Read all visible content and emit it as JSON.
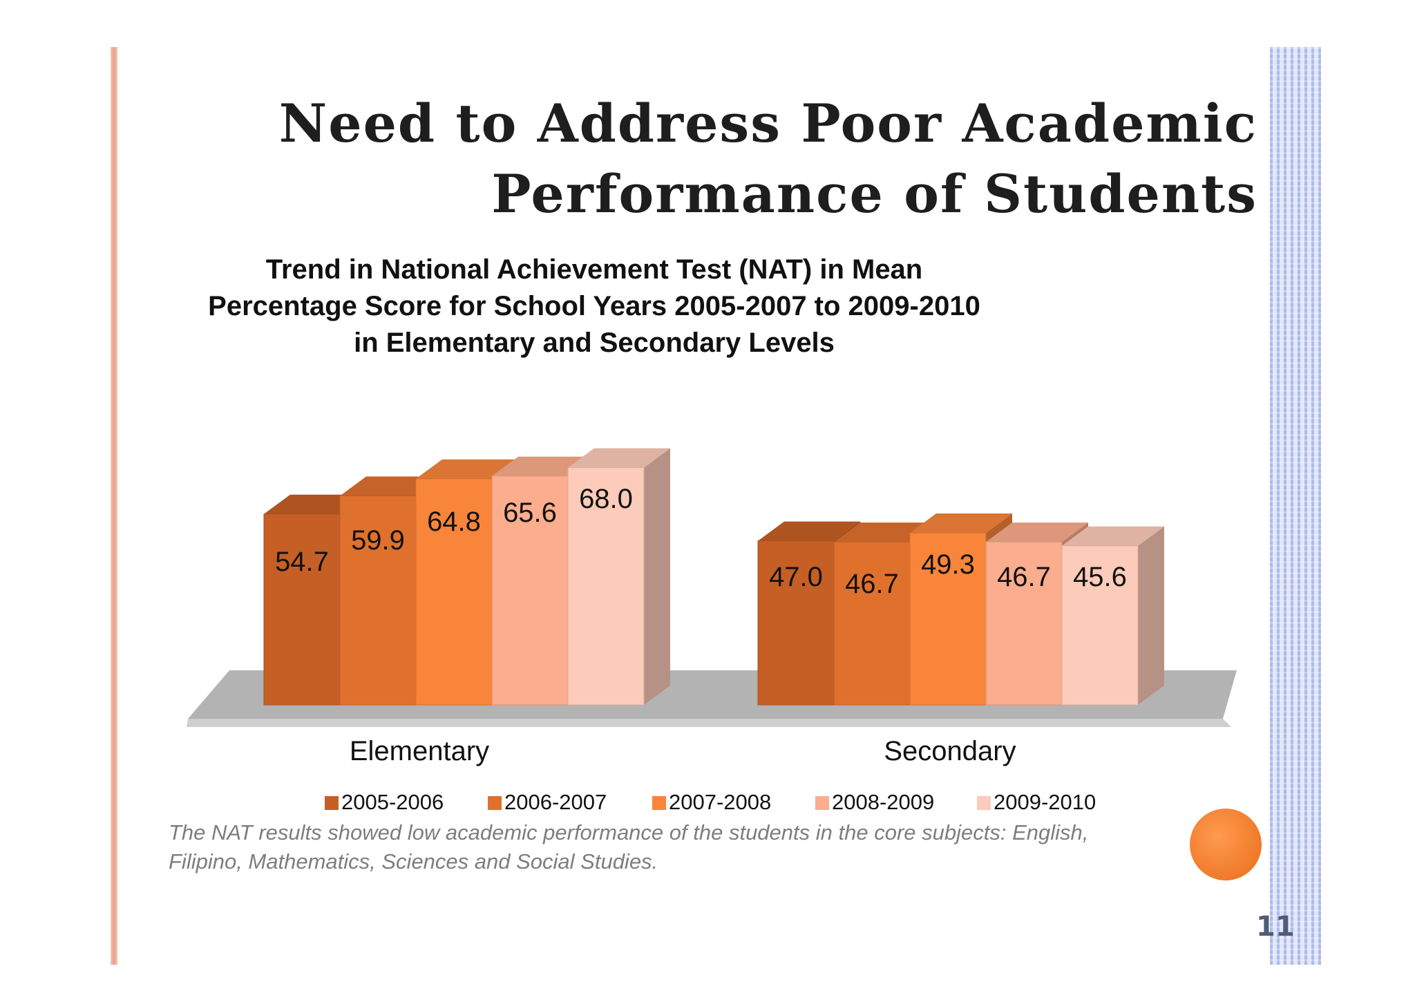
{
  "slide": {
    "title_lines": [
      "Need to Address Poor Academic",
      "Performance of Students"
    ],
    "note_lines": [
      "The  NAT results  showed  low academic performance of the students in the  core subjects: English,",
      "Filipino, Mathematics, Sciences and Social Studies."
    ],
    "page_number": "11"
  },
  "chart_data": {
    "type": "bar",
    "title_lines": [
      "Trend in National Achievement Test (NAT) in Mean",
      "Percentage Score for School Years 2005-2007 to 2009-2010",
      "in Elementary and Secondary Levels"
    ],
    "categories": [
      "Elementary",
      "Secondary"
    ],
    "series": [
      {
        "name": "2005-2006",
        "values": [
          54.7,
          47.0
        ],
        "labels": [
          "54.7",
          "47.0"
        ],
        "color": "#c65f25"
      },
      {
        "name": "2006-2007",
        "values": [
          59.9,
          46.7
        ],
        "labels": [
          "59.9",
          "46.7"
        ],
        "color": "#e0712d"
      },
      {
        "name": "2007-2008",
        "values": [
          64.8,
          49.3
        ],
        "labels": [
          "64.8",
          "49.3"
        ],
        "color": "#f8853a"
      },
      {
        "name": "2008-2009",
        "values": [
          65.6,
          46.7
        ],
        "labels": [
          "65.6",
          "46.7"
        ],
        "color": "#fbad8d"
      },
      {
        "name": "2009-2010",
        "values": [
          68.0,
          45.6
        ],
        "labels": [
          "68.0",
          "45.6"
        ],
        "color": "#fccbb9"
      }
    ],
    "legend_position": "bottom",
    "gridlines": false,
    "style": "3d-column"
  }
}
